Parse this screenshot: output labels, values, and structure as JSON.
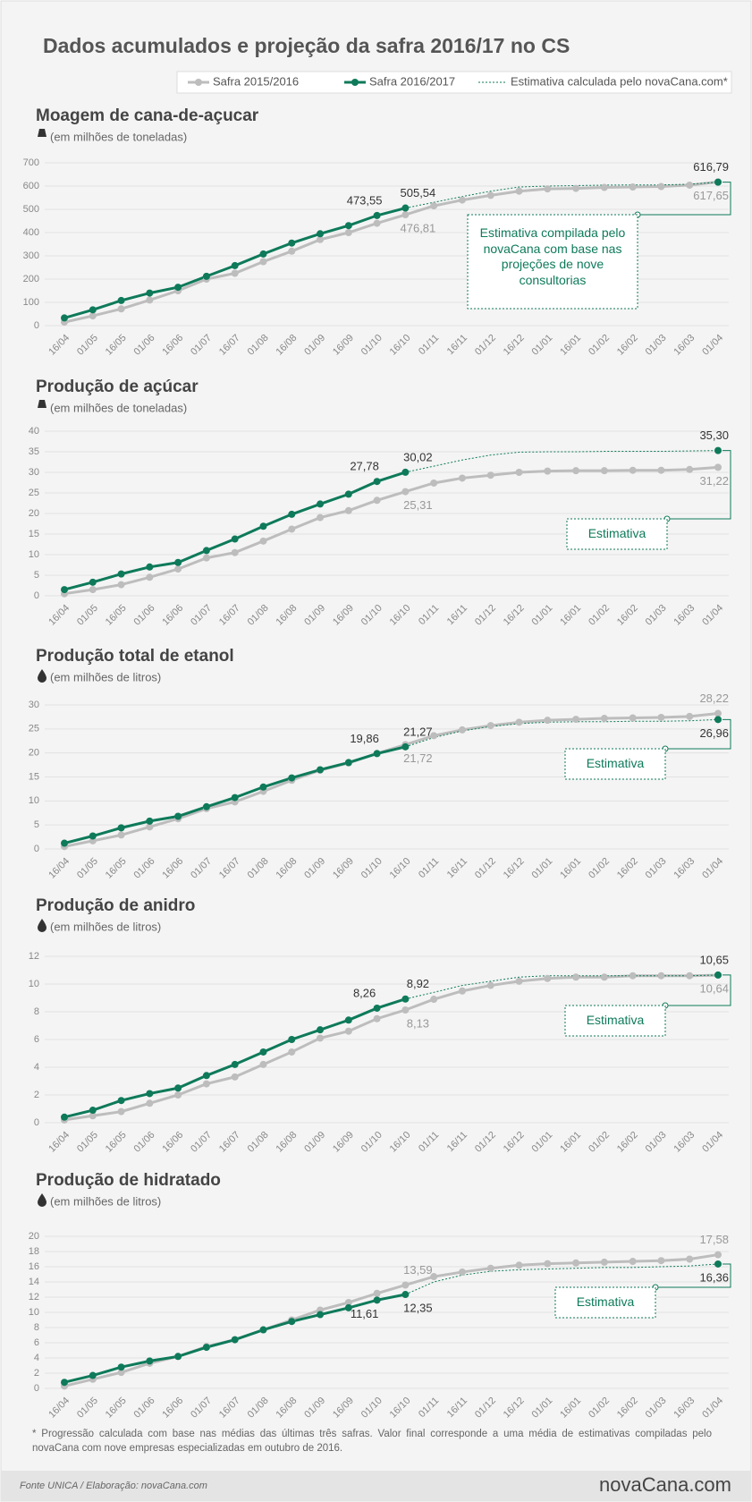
{
  "header": {
    "title": "Dados acumulados e projeção da safra 2016/17 no CS"
  },
  "footer": {
    "note": "* Progressão calculada com base nas médias das últimas três safras. Valor final corresponde a uma média de estimativas compiladas pelo novaCana com nove empresas especializadas em outubro de 2016.",
    "source": "Fonte UNICA / Elaboração: novaCana.com",
    "logo": "novaCana.com"
  },
  "chart_data": [
    {
      "type": "line",
      "title": "Moagem de cana-de-açucar",
      "subtitle": "(em milhões de toneladas)",
      "annotation": "Estimativa compilada pelo novaCana com base nas projeções de nove consultorias",
      "categories": [
        "16/04",
        "01/05",
        "16/05",
        "01/06",
        "16/06",
        "01/07",
        "16/07",
        "01/08",
        "16/08",
        "01/09",
        "16/09",
        "01/10",
        "16/10",
        "01/11",
        "16/11",
        "01/12",
        "16/12",
        "01/01",
        "16/01",
        "01/02",
        "16/02",
        "01/03",
        "16/03",
        "01/04"
      ],
      "ylim": [
        0,
        700
      ],
      "yticks": [
        0,
        100,
        200,
        300,
        400,
        500,
        600,
        700
      ],
      "grid": true,
      "series": [
        {
          "name": "Safra 2015/2016",
          "color": "#bdbdbd",
          "values": [
            15,
            42,
            72,
            110,
            150,
            200,
            225,
            275,
            320,
            370,
            400,
            440,
            476.81,
            515,
            540,
            560,
            578,
            588,
            590,
            594,
            596,
            598,
            604,
            617.65
          ],
          "value_labels": [
            null,
            null,
            null,
            null,
            null,
            null,
            null,
            null,
            null,
            null,
            null,
            null,
            "476,81",
            null,
            null,
            null,
            null,
            null,
            null,
            null,
            null,
            null,
            null,
            "617,65"
          ]
        },
        {
          "name": "Safra 2016/2017",
          "color": "#0e7a5a",
          "values": [
            33,
            68,
            108,
            140,
            165,
            212,
            258,
            308,
            355,
            395,
            430,
            473.55,
            505.54,
            null,
            null,
            null,
            null,
            null,
            null,
            null,
            null,
            null,
            null,
            null
          ],
          "value_labels": [
            null,
            null,
            null,
            null,
            null,
            null,
            null,
            null,
            null,
            null,
            null,
            "473,55",
            "505,54",
            null,
            null,
            null,
            null,
            null,
            null,
            null,
            null,
            null,
            null,
            null
          ]
        },
        {
          "name": "Estimativa calculada pelo novaCana.com*",
          "color": "#0e7a5a",
          "values": [
            null,
            null,
            null,
            null,
            null,
            null,
            null,
            null,
            null,
            null,
            null,
            null,
            505.54,
            530,
            555,
            578,
            596,
            600,
            602,
            604,
            605,
            605,
            608,
            616.79
          ],
          "value_labels": [
            null,
            null,
            null,
            null,
            null,
            null,
            null,
            null,
            null,
            null,
            null,
            null,
            null,
            null,
            null,
            null,
            null,
            null,
            null,
            null,
            null,
            null,
            null,
            "616,79"
          ]
        }
      ]
    },
    {
      "type": "line",
      "title": "Produção de açúcar",
      "subtitle": "(em milhões de toneladas)",
      "annotation": "Estimativa",
      "categories": [
        "16/04",
        "01/05",
        "16/05",
        "01/06",
        "16/06",
        "01/07",
        "16/07",
        "01/08",
        "16/08",
        "01/09",
        "16/09",
        "01/10",
        "16/10",
        "01/11",
        "16/11",
        "01/12",
        "16/12",
        "01/01",
        "16/01",
        "01/02",
        "16/02",
        "01/03",
        "16/03",
        "01/04"
      ],
      "ylim": [
        0,
        40
      ],
      "yticks": [
        0,
        5,
        10,
        15,
        20,
        25,
        30,
        35,
        40
      ],
      "grid": true,
      "series": [
        {
          "color": "#bdbdbd",
          "values": [
            0.5,
            1.5,
            2.7,
            4.5,
            6.5,
            9.2,
            10.5,
            13.3,
            16.2,
            19,
            20.7,
            23.2,
            25.31,
            27.4,
            28.6,
            29.3,
            30,
            30.3,
            30.4,
            30.4,
            30.5,
            30.5,
            30.7,
            31.22
          ],
          "value_labels": [
            null,
            null,
            null,
            null,
            null,
            null,
            null,
            null,
            null,
            null,
            null,
            null,
            "25,31",
            null,
            null,
            null,
            null,
            null,
            null,
            null,
            null,
            null,
            null,
            "31,22"
          ]
        },
        {
          "color": "#0e7a5a",
          "values": [
            1.5,
            3.3,
            5.3,
            7,
            8.1,
            11,
            13.8,
            16.9,
            19.8,
            22.3,
            24.7,
            27.78,
            30.02,
            null,
            null,
            null,
            null,
            null,
            null,
            null,
            null,
            null,
            null,
            null
          ],
          "value_labels": [
            null,
            null,
            null,
            null,
            null,
            null,
            null,
            null,
            null,
            null,
            null,
            "27,78",
            "30,02",
            null,
            null,
            null,
            null,
            null,
            null,
            null,
            null,
            null,
            null,
            null
          ]
        },
        {
          "color": "#0e7a5a",
          "values": [
            null,
            null,
            null,
            null,
            null,
            null,
            null,
            null,
            null,
            null,
            null,
            null,
            30.02,
            31.5,
            33,
            34.2,
            34.9,
            35,
            35,
            35.1,
            35.1,
            35.1,
            35.2,
            35.3
          ],
          "value_labels": [
            null,
            null,
            null,
            null,
            null,
            null,
            null,
            null,
            null,
            null,
            null,
            null,
            null,
            null,
            null,
            null,
            null,
            null,
            null,
            null,
            null,
            null,
            null,
            "35,30"
          ]
        }
      ]
    },
    {
      "type": "line",
      "title": "Produção total de etanol",
      "subtitle": "(em milhões de litros)",
      "annotation": "Estimativa",
      "categories": [
        "16/04",
        "01/05",
        "16/05",
        "01/06",
        "16/06",
        "01/07",
        "16/07",
        "01/08",
        "16/08",
        "01/09",
        "16/09",
        "01/10",
        "16/10",
        "01/11",
        "16/11",
        "01/12",
        "16/12",
        "01/01",
        "16/01",
        "01/02",
        "16/02",
        "01/03",
        "16/03",
        "01/04"
      ],
      "ylim": [
        0,
        30
      ],
      "yticks": [
        0,
        5,
        10,
        15,
        20,
        25,
        30
      ],
      "grid": true,
      "series": [
        {
          "color": "#bdbdbd",
          "values": [
            0.5,
            1.7,
            2.9,
            4.6,
            6.3,
            8.4,
            9.8,
            12,
            14.3,
            16.4,
            17.9,
            19.9,
            21.72,
            23.6,
            24.8,
            25.7,
            26.4,
            26.8,
            27,
            27.2,
            27.3,
            27.4,
            27.6,
            28.22
          ],
          "value_labels": [
            null,
            null,
            null,
            null,
            null,
            null,
            null,
            null,
            null,
            null,
            null,
            null,
            "21,72",
            null,
            null,
            null,
            null,
            null,
            null,
            null,
            null,
            null,
            null,
            "28,22"
          ]
        },
        {
          "color": "#0e7a5a",
          "values": [
            1.2,
            2.7,
            4.4,
            5.8,
            6.8,
            8.8,
            10.7,
            12.9,
            14.8,
            16.5,
            18,
            19.86,
            21.27,
            null,
            null,
            null,
            null,
            null,
            null,
            null,
            null,
            null,
            null,
            null
          ],
          "value_labels": [
            null,
            null,
            null,
            null,
            null,
            null,
            null,
            null,
            null,
            null,
            null,
            "19,86",
            "21,27",
            null,
            null,
            null,
            null,
            null,
            null,
            null,
            null,
            null,
            null,
            null
          ]
        },
        {
          "color": "#0e7a5a",
          "values": [
            null,
            null,
            null,
            null,
            null,
            null,
            null,
            null,
            null,
            null,
            null,
            null,
            21.27,
            23.2,
            24.6,
            25.5,
            26.1,
            26.4,
            26.5,
            26.5,
            26.6,
            26.6,
            26.7,
            26.96
          ],
          "value_labels": [
            null,
            null,
            null,
            null,
            null,
            null,
            null,
            null,
            null,
            null,
            null,
            null,
            null,
            null,
            null,
            null,
            null,
            null,
            null,
            null,
            null,
            null,
            null,
            "26,96"
          ]
        }
      ]
    },
    {
      "type": "line",
      "title": "Produção de anidro",
      "subtitle": "(em milhões de litros)",
      "annotation": "Estimativa",
      "categories": [
        "16/04",
        "01/05",
        "16/05",
        "01/06",
        "16/06",
        "01/07",
        "16/07",
        "01/08",
        "16/08",
        "01/09",
        "16/09",
        "01/10",
        "16/10",
        "01/11",
        "16/11",
        "01/12",
        "16/12",
        "01/01",
        "16/01",
        "01/02",
        "16/02",
        "01/03",
        "16/03",
        "01/04"
      ],
      "ylim": [
        0,
        12
      ],
      "yticks": [
        0,
        2,
        4,
        6,
        8,
        10,
        12
      ],
      "grid": true,
      "series": [
        {
          "color": "#bdbdbd",
          "values": [
            0.2,
            0.5,
            0.8,
            1.4,
            2,
            2.8,
            3.3,
            4.2,
            5.1,
            6.1,
            6.6,
            7.5,
            8.13,
            8.9,
            9.5,
            9.9,
            10.2,
            10.4,
            10.5,
            10.5,
            10.6,
            10.6,
            10.6,
            10.64
          ],
          "value_labels": [
            null,
            null,
            null,
            null,
            null,
            null,
            null,
            null,
            null,
            null,
            null,
            null,
            "8,13",
            null,
            null,
            null,
            null,
            null,
            null,
            null,
            null,
            null,
            null,
            "10,64"
          ]
        },
        {
          "color": "#0e7a5a",
          "values": [
            0.4,
            0.9,
            1.6,
            2.1,
            2.5,
            3.4,
            4.2,
            5.1,
            6,
            6.7,
            7.4,
            8.26,
            8.92,
            null,
            null,
            null,
            null,
            null,
            null,
            null,
            null,
            null,
            null,
            null
          ],
          "value_labels": [
            null,
            null,
            null,
            null,
            null,
            null,
            null,
            null,
            null,
            null,
            null,
            "8,26",
            "8,92",
            null,
            null,
            null,
            null,
            null,
            null,
            null,
            null,
            null,
            null,
            null
          ]
        },
        {
          "color": "#0e7a5a",
          "values": [
            null,
            null,
            null,
            null,
            null,
            null,
            null,
            null,
            null,
            null,
            null,
            null,
            8.92,
            9.4,
            9.9,
            10.2,
            10.5,
            10.6,
            10.6,
            10.6,
            10.6,
            10.6,
            10.6,
            10.65
          ],
          "value_labels": [
            null,
            null,
            null,
            null,
            null,
            null,
            null,
            null,
            null,
            null,
            null,
            null,
            null,
            null,
            null,
            null,
            null,
            null,
            null,
            null,
            null,
            null,
            null,
            "10,65"
          ]
        }
      ]
    },
    {
      "type": "line",
      "title": "Produção de hidratado",
      "subtitle": "(em milhões de litros)",
      "annotation": "Estimativa",
      "categories": [
        "16/04",
        "01/05",
        "16/05",
        "01/06",
        "16/06",
        "01/07",
        "16/07",
        "01/08",
        "16/08",
        "01/09",
        "16/09",
        "01/10",
        "16/10",
        "01/11",
        "16/11",
        "01/12",
        "16/12",
        "01/01",
        "16/01",
        "01/02",
        "16/02",
        "01/03",
        "16/03",
        "01/04"
      ],
      "ylim": [
        0,
        20
      ],
      "yticks": [
        0,
        2,
        4,
        6,
        8,
        10,
        12,
        14,
        16,
        18,
        20
      ],
      "grid": true,
      "series": [
        {
          "color": "#bdbdbd",
          "values": [
            0.3,
            1.2,
            2.1,
            3.3,
            4.2,
            5.5,
            6.4,
            7.7,
            9,
            10.3,
            11.3,
            12.5,
            13.59,
            14.7,
            15.3,
            15.8,
            16.2,
            16.4,
            16.5,
            16.6,
            16.7,
            16.8,
            17,
            17.58
          ],
          "value_labels": [
            null,
            null,
            null,
            null,
            null,
            null,
            null,
            null,
            null,
            null,
            null,
            null,
            "13,59",
            null,
            null,
            null,
            null,
            null,
            null,
            null,
            null,
            null,
            null,
            "17,58"
          ]
        },
        {
          "color": "#0e7a5a",
          "values": [
            0.8,
            1.7,
            2.8,
            3.6,
            4.2,
            5.4,
            6.4,
            7.7,
            8.8,
            9.7,
            10.6,
            11.61,
            12.35,
            null,
            null,
            null,
            null,
            null,
            null,
            null,
            null,
            null,
            null,
            null
          ],
          "value_labels": [
            null,
            null,
            null,
            null,
            null,
            null,
            null,
            null,
            null,
            null,
            null,
            "11,61",
            "12,35",
            null,
            null,
            null,
            null,
            null,
            null,
            null,
            null,
            null,
            null,
            null
          ]
        },
        {
          "color": "#0e7a5a",
          "values": [
            null,
            null,
            null,
            null,
            null,
            null,
            null,
            null,
            null,
            null,
            null,
            null,
            12.35,
            14,
            14.9,
            15.4,
            15.6,
            15.7,
            15.8,
            15.9,
            15.9,
            16,
            16.1,
            16.36
          ],
          "value_labels": [
            null,
            null,
            null,
            null,
            null,
            null,
            null,
            null,
            null,
            null,
            null,
            null,
            null,
            null,
            null,
            null,
            null,
            null,
            null,
            null,
            null,
            null,
            null,
            "16,36"
          ]
        }
      ]
    }
  ]
}
